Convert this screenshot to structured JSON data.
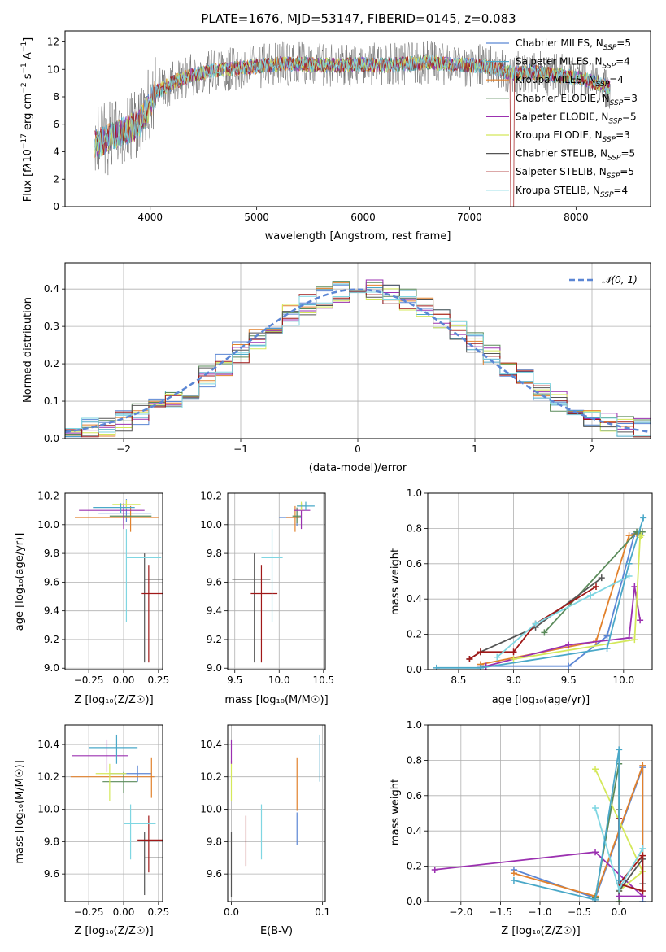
{
  "figure_title": "PLATE=1676, MJD=53147, FIBERID=0145, z=0.083",
  "models": [
    {
      "name": "Chabrier MILES",
      "nssp": "5",
      "color": "#5b86d4"
    },
    {
      "name": "Salpeter MILES",
      "nssp": "4",
      "color": "#4aa8c8"
    },
    {
      "name": "Kroupa MILES",
      "nssp": "4",
      "color": "#e2812c"
    },
    {
      "name": "Chabrier ELODIE",
      "nssp": "3",
      "color": "#5a8a5a"
    },
    {
      "name": "Salpeter ELODIE",
      "nssp": "5",
      "color": "#9b30b0"
    },
    {
      "name": "Kroupa ELODIE",
      "nssp": "3",
      "color": "#d4e85a"
    },
    {
      "name": "Chabrier STELIB",
      "nssp": "5",
      "color": "#555555"
    },
    {
      "name": "Salpeter STELIB",
      "nssp": "5",
      "color": "#a01818"
    },
    {
      "name": "Kroupa STELIB",
      "nssp": "4",
      "color": "#7fd6e2"
    }
  ],
  "chart_data": [
    {
      "id": "spectrum",
      "type": "line",
      "xlabel": "wavelength [Angstrom, rest frame]",
      "ylabel": "Flux [f_λ 10⁻¹⁷ erg cm⁻² s⁻¹ A⁻¹]",
      "xlim": [
        3200,
        8700
      ],
      "ylim": [
        0,
        12.8
      ],
      "xticks": [
        "4000",
        "5000",
        "6000",
        "7000",
        "8000"
      ],
      "yticks": [
        "0",
        "2",
        "4",
        "6",
        "8",
        "10",
        "12"
      ],
      "continuum_x": [
        3500,
        3700,
        3900,
        4050,
        4200,
        4400,
        4600,
        4800,
        5000,
        5200,
        5400,
        5600,
        5800,
        6000,
        6200,
        6400,
        6600,
        6800,
        7000,
        7200,
        7400,
        7600,
        7800,
        8000,
        8200,
        8300
      ],
      "continuum_y": [
        4.6,
        5.3,
        6.0,
        8.3,
        9.0,
        9.6,
        9.9,
        10.1,
        10.2,
        10.4,
        10.4,
        10.3,
        10.3,
        10.4,
        10.3,
        10.4,
        10.5,
        10.4,
        10.3,
        10.2,
        9.7,
        9.8,
        9.6,
        9.4,
        9.0,
        8.7
      ],
      "grid": false,
      "legend_position": "top-right"
    },
    {
      "id": "residuals",
      "type": "histogram",
      "xlabel": "(data-model)/error",
      "ylabel": "Normed distribution",
      "xlim": [
        -2.5,
        2.5
      ],
      "ylim": [
        0,
        0.47
      ],
      "xticks": [
        "−2",
        "−1",
        "0",
        "1",
        "2"
      ],
      "yticks": [
        "0.0",
        "0.1",
        "0.2",
        "0.3",
        "0.4"
      ],
      "reference_curve": "N(0,1)",
      "reference_label": "𝒩(0, 1)",
      "reference_color": "#5b86d4",
      "grid": true,
      "legend_position": "top-right"
    },
    {
      "id": "age_vs_Z",
      "type": "errorbar",
      "xlabel": "Z [log₁₀(Z/Z☉)]",
      "ylabel": "age  [log₁₀(age/yr)]",
      "xlim": [
        -0.42,
        0.28
      ],
      "ylim": [
        8.99,
        10.22
      ],
      "xticks": [
        "−0.25",
        "0.00",
        "0.25"
      ],
      "yticks": [
        "9.0",
        "9.2",
        "9.4",
        "9.6",
        "9.8",
        "10.0",
        "10.2"
      ],
      "points": [
        {
          "model": 0,
          "x": 0.02,
          "y": 10.08,
          "xerr": [
            0.2,
            0.18
          ],
          "yerr": [
            0.06,
            0.1
          ]
        },
        {
          "model": 2,
          "x": 0.05,
          "y": 10.05,
          "xerr": [
            0.4,
            0.2
          ],
          "yerr": [
            0.1,
            0.08
          ]
        },
        {
          "model": 3,
          "x": 0.0,
          "y": 10.06,
          "xerr": [
            0.1,
            0.2
          ],
          "yerr": [
            0.05,
            0.06
          ]
        },
        {
          "model": 4,
          "x": 0.0,
          "y": 10.1,
          "xerr": [
            0.32,
            0.15
          ],
          "yerr": [
            0.13,
            0.05
          ]
        },
        {
          "model": 5,
          "x": 0.02,
          "y": 10.14,
          "xerr": [
            0.1,
            0.1
          ],
          "yerr": [
            0.03,
            0.03
          ]
        },
        {
          "model": 6,
          "x": 0.15,
          "y": 9.62,
          "xerr": [
            0.0,
            0.24
          ],
          "yerr": [
            0.58,
            0.18
          ]
        },
        {
          "model": 7,
          "x": 0.18,
          "y": 9.52,
          "xerr": [
            0.05,
            0.1
          ],
          "yerr": [
            0.48,
            0.2
          ]
        },
        {
          "model": 8,
          "x": 0.02,
          "y": 9.77,
          "xerr": [
            0.0,
            0.25
          ],
          "yerr": [
            0.45,
            0.2
          ]
        },
        {
          "model": 1,
          "x": -0.02,
          "y": 10.12,
          "xerr": [
            0.2,
            0.1
          ],
          "yerr": [
            0.04,
            0.03
          ]
        }
      ]
    },
    {
      "id": "age_vs_mass",
      "type": "errorbar",
      "xlabel": "mass [log₁₀(M/M☉)]",
      "ylabel": "",
      "xlim": [
        9.42,
        10.52
      ],
      "ylim": [
        8.99,
        10.22
      ],
      "xticks": [
        "9.5",
        "10.0",
        "10.5"
      ],
      "yticks": [
        "9.0",
        "9.2",
        "9.4",
        "9.6",
        "9.8",
        "10.0",
        "10.2"
      ],
      "points": [
        {
          "model": 0,
          "x": 10.2,
          "y": 10.05,
          "xerr": [
            0.2,
            0.05
          ],
          "yerr": [
            0.06,
            0.06
          ]
        },
        {
          "model": 2,
          "x": 10.18,
          "y": 10.05,
          "xerr": [
            0.1,
            0.05
          ],
          "yerr": [
            0.1,
            0.08
          ]
        },
        {
          "model": 3,
          "x": 10.2,
          "y": 10.06,
          "xerr": [
            0.05,
            0.05
          ],
          "yerr": [
            0.05,
            0.06
          ]
        },
        {
          "model": 4,
          "x": 10.25,
          "y": 10.1,
          "xerr": [
            0.08,
            0.1
          ],
          "yerr": [
            0.13,
            0.05
          ]
        },
        {
          "model": 5,
          "x": 10.25,
          "y": 10.13,
          "xerr": [
            0.05,
            0.05
          ],
          "yerr": [
            0.03,
            0.03
          ]
        },
        {
          "model": 6,
          "x": 9.72,
          "y": 9.62,
          "xerr": [
            0.25,
            0.18
          ],
          "yerr": [
            0.58,
            0.18
          ]
        },
        {
          "model": 7,
          "x": 9.8,
          "y": 9.52,
          "xerr": [
            0.12,
            0.18
          ],
          "yerr": [
            0.48,
            0.2
          ]
        },
        {
          "model": 8,
          "x": 9.92,
          "y": 9.77,
          "xerr": [
            0.12,
            0.12
          ],
          "yerr": [
            0.45,
            0.2
          ]
        },
        {
          "model": 1,
          "x": 10.3,
          "y": 10.13,
          "xerr": [
            0.1,
            0.1
          ],
          "yerr": [
            0.03,
            0.03
          ]
        }
      ]
    },
    {
      "id": "massweight_vs_age",
      "type": "line",
      "xlabel": "age  [log₁₀(age/yr)]",
      "ylabel": "mass weight",
      "xlim": [
        8.22,
        10.26
      ],
      "ylim": [
        0,
        1
      ],
      "xticks": [
        "8.5",
        "9.0",
        "9.5",
        "10.0"
      ],
      "yticks": [
        "0.0",
        "0.2",
        "0.4",
        "0.6",
        "0.8",
        "1.0"
      ],
      "grid": true,
      "series": [
        {
          "model": 0,
          "x": [
            8.7,
            9.5,
            9.85,
            10.1,
            10.15
          ],
          "y": [
            0.02,
            0.02,
            0.19,
            0.77,
            0.77
          ]
        },
        {
          "model": 2,
          "x": [
            8.7,
            9.75,
            10.05,
            10.12
          ],
          "y": [
            0.03,
            0.16,
            0.76,
            0.77
          ]
        },
        {
          "model": 3,
          "x": [
            9.28,
            10.12,
            10.15,
            10.17
          ],
          "y": [
            0.21,
            0.78,
            0.78,
            0.78
          ]
        },
        {
          "model": 4,
          "x": [
            8.75,
            9.5,
            10.05,
            10.1,
            10.15
          ],
          "y": [
            0.02,
            0.14,
            0.18,
            0.47,
            0.28
          ]
        },
        {
          "model": 5,
          "x": [
            9.0,
            10.1,
            10.15,
            10.16
          ],
          "y": [
            0.06,
            0.17,
            0.75,
            0.76
          ]
        },
        {
          "model": 6,
          "x": [
            8.6,
            8.7,
            9.2,
            9.8
          ],
          "y": [
            0.06,
            0.1,
            0.24,
            0.52
          ]
        },
        {
          "model": 7,
          "x": [
            8.6,
            8.7,
            9.0,
            9.2,
            9.75
          ],
          "y": [
            0.06,
            0.1,
            0.1,
            0.26,
            0.47
          ]
        },
        {
          "model": 8,
          "x": [
            8.85,
            9.2,
            9.7,
            10.05
          ],
          "y": [
            0.07,
            0.26,
            0.42,
            0.53
          ]
        },
        {
          "model": 1,
          "x": [
            8.3,
            8.7,
            9.85,
            10.05,
            10.18
          ],
          "y": [
            0.01,
            0.01,
            0.12,
            0.6,
            0.86
          ]
        }
      ]
    },
    {
      "id": "mass_vs_Z",
      "type": "errorbar",
      "xlabel": "Z [log₁₀(Z/Z☉)]",
      "ylabel": "mass [log₁₀(M/M☉)]",
      "xlim": [
        -0.42,
        0.28
      ],
      "ylim": [
        9.43,
        10.52
      ],
      "xticks": [
        "−0.25",
        "0.00",
        "0.25"
      ],
      "yticks": [
        "9.6",
        "9.8",
        "10.0",
        "10.2",
        "10.4"
      ],
      "points": [
        {
          "model": 0,
          "x": 0.1,
          "y": 10.22,
          "xerr": [
            0.2,
            0.1
          ],
          "yerr": [
            0.05,
            0.05
          ]
        },
        {
          "model": 2,
          "x": 0.2,
          "y": 10.2,
          "xerr": [
            0.58,
            0.02
          ],
          "yerr": [
            0.13,
            0.12
          ]
        },
        {
          "model": 3,
          "x": 0.0,
          "y": 10.17,
          "xerr": [
            0.15,
            0.1
          ],
          "yerr": [
            0.07,
            0.06
          ]
        },
        {
          "model": 4,
          "x": -0.12,
          "y": 10.33,
          "xerr": [
            0.25,
            0.15
          ],
          "yerr": [
            0.1,
            0.1
          ]
        },
        {
          "model": 5,
          "x": -0.1,
          "y": 10.22,
          "xerr": [
            0.1,
            0.12
          ],
          "yerr": [
            0.17,
            0.06
          ]
        },
        {
          "model": 6,
          "x": 0.15,
          "y": 9.7,
          "xerr": [
            0.0,
            0.25
          ],
          "yerr": [
            0.23,
            0.16
          ]
        },
        {
          "model": 7,
          "x": 0.18,
          "y": 9.81,
          "xerr": [
            0.08,
            0.1
          ],
          "yerr": [
            0.2,
            0.15
          ]
        },
        {
          "model": 8,
          "x": 0.05,
          "y": 9.91,
          "xerr": [
            0.05,
            0.18
          ],
          "yerr": [
            0.22,
            0.12
          ]
        },
        {
          "model": 1,
          "x": -0.05,
          "y": 10.38,
          "xerr": [
            0.2,
            0.15
          ],
          "yerr": [
            0.1,
            0.08
          ]
        }
      ]
    },
    {
      "id": "mass_vs_EBV",
      "type": "errorbar",
      "xlabel": "E(B-V)",
      "ylabel": "",
      "xlim": [
        -0.004,
        0.103
      ],
      "ylim": [
        9.43,
        10.52
      ],
      "xticks": [
        "0.0",
        "0.1"
      ],
      "yticks": [
        "9.6",
        "9.8",
        "10.0",
        "10.2",
        "10.4"
      ],
      "points": [
        {
          "model": 0,
          "x": 0.072,
          "y": 9.88,
          "xerr": [
            0,
            0
          ],
          "yerr": [
            0.1,
            0.1
          ]
        },
        {
          "model": 2,
          "x": 0.072,
          "y": 10.15,
          "xerr": [
            0,
            0
          ],
          "yerr": [
            0.16,
            0.17
          ]
        },
        {
          "model": 5,
          "x": 0.0,
          "y": 10.18,
          "xerr": [
            0,
            0
          ],
          "yerr": [
            0.13,
            0.12
          ]
        },
        {
          "model": 6,
          "x": 0.0,
          "y": 9.69,
          "xerr": [
            0,
            0
          ],
          "yerr": [
            0.23,
            0.17
          ]
        },
        {
          "model": 7,
          "x": 0.016,
          "y": 9.8,
          "xerr": [
            0,
            0
          ],
          "yerr": [
            0.15,
            0.16
          ]
        },
        {
          "model": 8,
          "x": 0.033,
          "y": 9.86,
          "xerr": [
            0,
            0
          ],
          "yerr": [
            0.17,
            0.17
          ]
        },
        {
          "model": 4,
          "x": 0.0,
          "y": 10.36,
          "xerr": [
            0,
            0
          ],
          "yerr": [
            0.08,
            0.07
          ]
        },
        {
          "model": 1,
          "x": 0.097,
          "y": 10.32,
          "xerr": [
            0,
            0
          ],
          "yerr": [
            0.15,
            0.14
          ]
        }
      ]
    },
    {
      "id": "massweight_vs_Z",
      "type": "line",
      "xlabel": "Z [log₁₀(Z/Z☉)]",
      "ylabel": "mass weight",
      "xlim": [
        -2.42,
        0.42
      ],
      "ylim": [
        0,
        1
      ],
      "xticks": [
        "−2.0",
        "−1.5",
        "−1.0",
        "−0.5",
        "0.0"
      ],
      "yticks": [
        "0.0",
        "0.2",
        "0.4",
        "0.6",
        "0.8",
        "1.0"
      ],
      "grid": true,
      "series": [
        {
          "model": 0,
          "x": [
            -1.33,
            -0.3,
            0.3,
            0.3
          ],
          "y": [
            0.18,
            0.02,
            0.76,
            0.0
          ]
        },
        {
          "model": 2,
          "x": [
            -1.33,
            -0.3,
            0.3,
            0.3
          ],
          "y": [
            0.16,
            0.03,
            0.77,
            0.03
          ]
        },
        {
          "model": 3,
          "x": [
            -0.3,
            -0.0,
            0.0
          ],
          "y": [
            0.02,
            0.78,
            0.0
          ]
        },
        {
          "model": 4,
          "x": [
            -2.33,
            -0.3,
            0.3,
            0.0,
            -0.0
          ],
          "y": [
            0.18,
            0.28,
            0.03,
            0.03,
            0.47
          ]
        },
        {
          "model": 5,
          "x": [
            -0.3,
            0.3,
            0.0
          ],
          "y": [
            0.75,
            0.17,
            0.06
          ]
        },
        {
          "model": 6,
          "x": [
            -0.0,
            0.0,
            0.3,
            0.3
          ],
          "y": [
            0.52,
            0.06,
            0.24,
            0.1
          ]
        },
        {
          "model": 7,
          "x": [
            -0.0,
            0.0,
            0.3,
            0.3,
            -0.0
          ],
          "y": [
            0.47,
            0.1,
            0.26,
            0.06,
            0.1
          ]
        },
        {
          "model": 8,
          "x": [
            -0.3,
            0.0,
            0.3
          ],
          "y": [
            0.53,
            0.07,
            0.3
          ]
        },
        {
          "model": 1,
          "x": [
            -1.33,
            -0.3,
            0.0,
            0.0
          ],
          "y": [
            0.12,
            0.01,
            0.86,
            0.12
          ]
        }
      ]
    }
  ]
}
